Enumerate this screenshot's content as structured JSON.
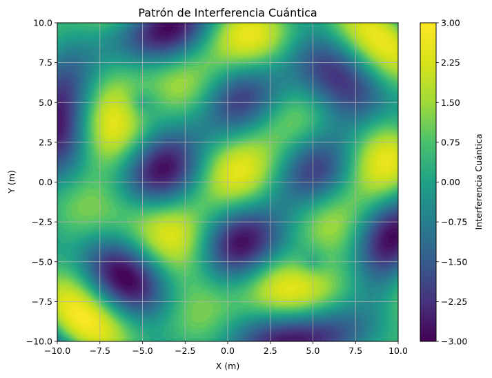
{
  "chart_data": {
    "type": "heatmap",
    "subtype": "filled-contour",
    "title": "Patrón de Interferencia Cuántica",
    "xlabel": "X (m)",
    "ylabel": "Y (m)",
    "colorbar_label": "Interferencia Cuántica",
    "xlim": [
      -10,
      10
    ],
    "ylim": [
      -10,
      10
    ],
    "zlim": [
      -3,
      3
    ],
    "colormap": "viridis",
    "contour_levels": 40,
    "grid": true,
    "x_ticks": [
      "−10.0",
      "−7.5",
      "−5.0",
      "−2.5",
      "0.0",
      "2.5",
      "5.0",
      "7.5",
      "10.0"
    ],
    "y_ticks": [
      "10.0",
      "7.5",
      "5.0",
      "2.5",
      "0.0",
      "−2.5",
      "−5.0",
      "−7.5",
      "−10.0"
    ],
    "colorbar_ticks": [
      "3.00",
      "2.25",
      "1.50",
      "0.75",
      "0.00",
      "−0.75",
      "−1.50",
      "−2.25",
      "−3.00"
    ],
    "function": "sin(sqrt((x+5)^2+(y-5)^2)) + sin(sqrt((x-5)^2+(y+5)^2)) + cos(sqrt((x-5)^2+(y-5)^2))"
  }
}
